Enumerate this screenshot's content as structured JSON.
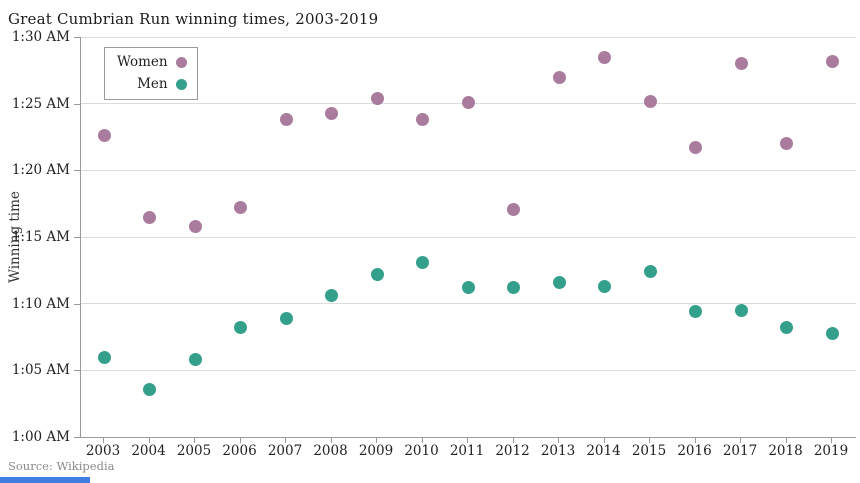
{
  "header": {
    "title": "Great Cumbrian Run winning times, 2003-2019"
  },
  "footer": {
    "source": "Source: Wikipedia"
  },
  "legend": {
    "items": [
      {
        "label": "Women",
        "color": "#a97c9e"
      },
      {
        "label": "Men",
        "color": "#34a08c"
      }
    ]
  },
  "colors": {
    "women": "#a97c9e",
    "men": "#34a08c",
    "gridline": "#dcdcdc",
    "axis": "#9a9a9a",
    "accent_strip": "#3f7de0"
  },
  "chart_data": {
    "type": "scatter",
    "title": "Great Cumbrian Run winning times, 2003-2019",
    "xlabel": "",
    "ylabel": "Winning time",
    "grid": true,
    "legend_position": "top-left",
    "x": [
      2003,
      2004,
      2005,
      2006,
      2007,
      2008,
      2009,
      2010,
      2011,
      2012,
      2013,
      2014,
      2015,
      2016,
      2017,
      2018,
      2019
    ],
    "y_axis": {
      "unit": "minutes after 1:00 AM",
      "range_minutes": [
        0,
        30
      ],
      "tick_minutes": [
        0,
        5,
        10,
        15,
        20,
        25,
        30
      ],
      "tick_labels": [
        "1:00 AM",
        "1:05 AM",
        "1:10 AM",
        "1:15 AM",
        "1:20 AM",
        "1:25 AM",
        "1:30 AM"
      ]
    },
    "series": [
      {
        "name": "Women",
        "color": "#a97c9e",
        "values_minutes_after_1am": [
          22.6,
          16.5,
          15.8,
          17.2,
          23.8,
          24.3,
          25.4,
          23.8,
          25.1,
          17.1,
          27.0,
          28.5,
          25.2,
          21.7,
          28.0,
          22.0,
          28.2
        ]
      },
      {
        "name": "Men",
        "color": "#34a08c",
        "values_minutes_after_1am": [
          6.0,
          3.6,
          5.8,
          8.2,
          8.9,
          10.6,
          12.2,
          13.1,
          11.2,
          11.2,
          11.6,
          11.3,
          12.4,
          9.4,
          9.5,
          8.2,
          7.8
        ]
      }
    ]
  }
}
